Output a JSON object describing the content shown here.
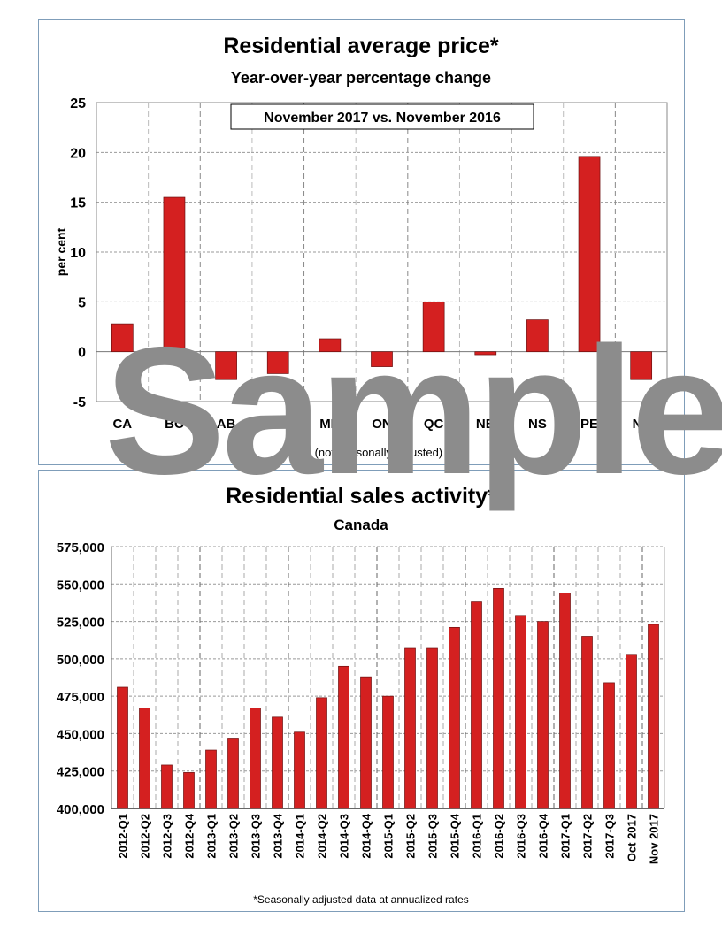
{
  "chart_data": [
    {
      "type": "bar",
      "title": "Residential average price*",
      "subtitle": "Year-over-year percentage change",
      "annotation": "November 2017 vs. November 2016",
      "xlabel": "Actual (not seasonally adjusted)",
      "ylabel": "per cent",
      "ylim": [
        -5,
        25
      ],
      "yticks": [
        -5,
        0,
        5,
        10,
        15,
        20,
        25
      ],
      "categories": [
        "CA",
        "BC",
        "AB",
        "SK",
        "MB",
        "ON",
        "QC",
        "NB",
        "NS",
        "PE",
        "NF"
      ],
      "values": [
        2.8,
        15.5,
        -2.8,
        -2.2,
        1.3,
        -1.5,
        5.0,
        -0.3,
        3.2,
        19.6,
        -2.8
      ],
      "grid": true
    },
    {
      "type": "bar",
      "title": "Residential sales activity*",
      "subtitle": "Canada",
      "footnote": "*Seasonally adjusted data at annualized rates",
      "ylim": [
        400000,
        575000
      ],
      "yticks": [
        400000,
        425000,
        450000,
        475000,
        500000,
        525000,
        550000,
        575000
      ],
      "ytick_labels": [
        "400,000",
        "425,000",
        "450,000",
        "475,000",
        "500,000",
        "525,000",
        "550,000",
        "575,000"
      ],
      "categories": [
        "2012-Q1",
        "2012-Q2",
        "2012-Q3",
        "2012-Q4",
        "2013-Q1",
        "2013-Q2",
        "2013-Q3",
        "2013-Q4",
        "2014-Q1",
        "2014-Q2",
        "2014-Q3",
        "2014-Q4",
        "2015-Q1",
        "2015-Q2",
        "2015-Q3",
        "2015-Q4",
        "2016-Q1",
        "2016-Q2",
        "2016-Q3",
        "2016-Q4",
        "2017-Q1",
        "2017-Q2",
        "2017-Q3",
        "Oct 2017",
        "Nov 2017"
      ],
      "values": [
        481000,
        467000,
        429000,
        424000,
        439000,
        447000,
        467000,
        461000,
        451000,
        474000,
        495000,
        488000,
        475000,
        507000,
        507000,
        521000,
        538000,
        547000,
        529000,
        525000,
        544000,
        515000,
        484000,
        503000,
        523000
      ],
      "grid": true
    }
  ],
  "colors": {
    "bar": "#d42020",
    "bar_edge": "#6b1010",
    "grid": "#999999",
    "border": "#7f9db9"
  },
  "watermark": "Sample"
}
